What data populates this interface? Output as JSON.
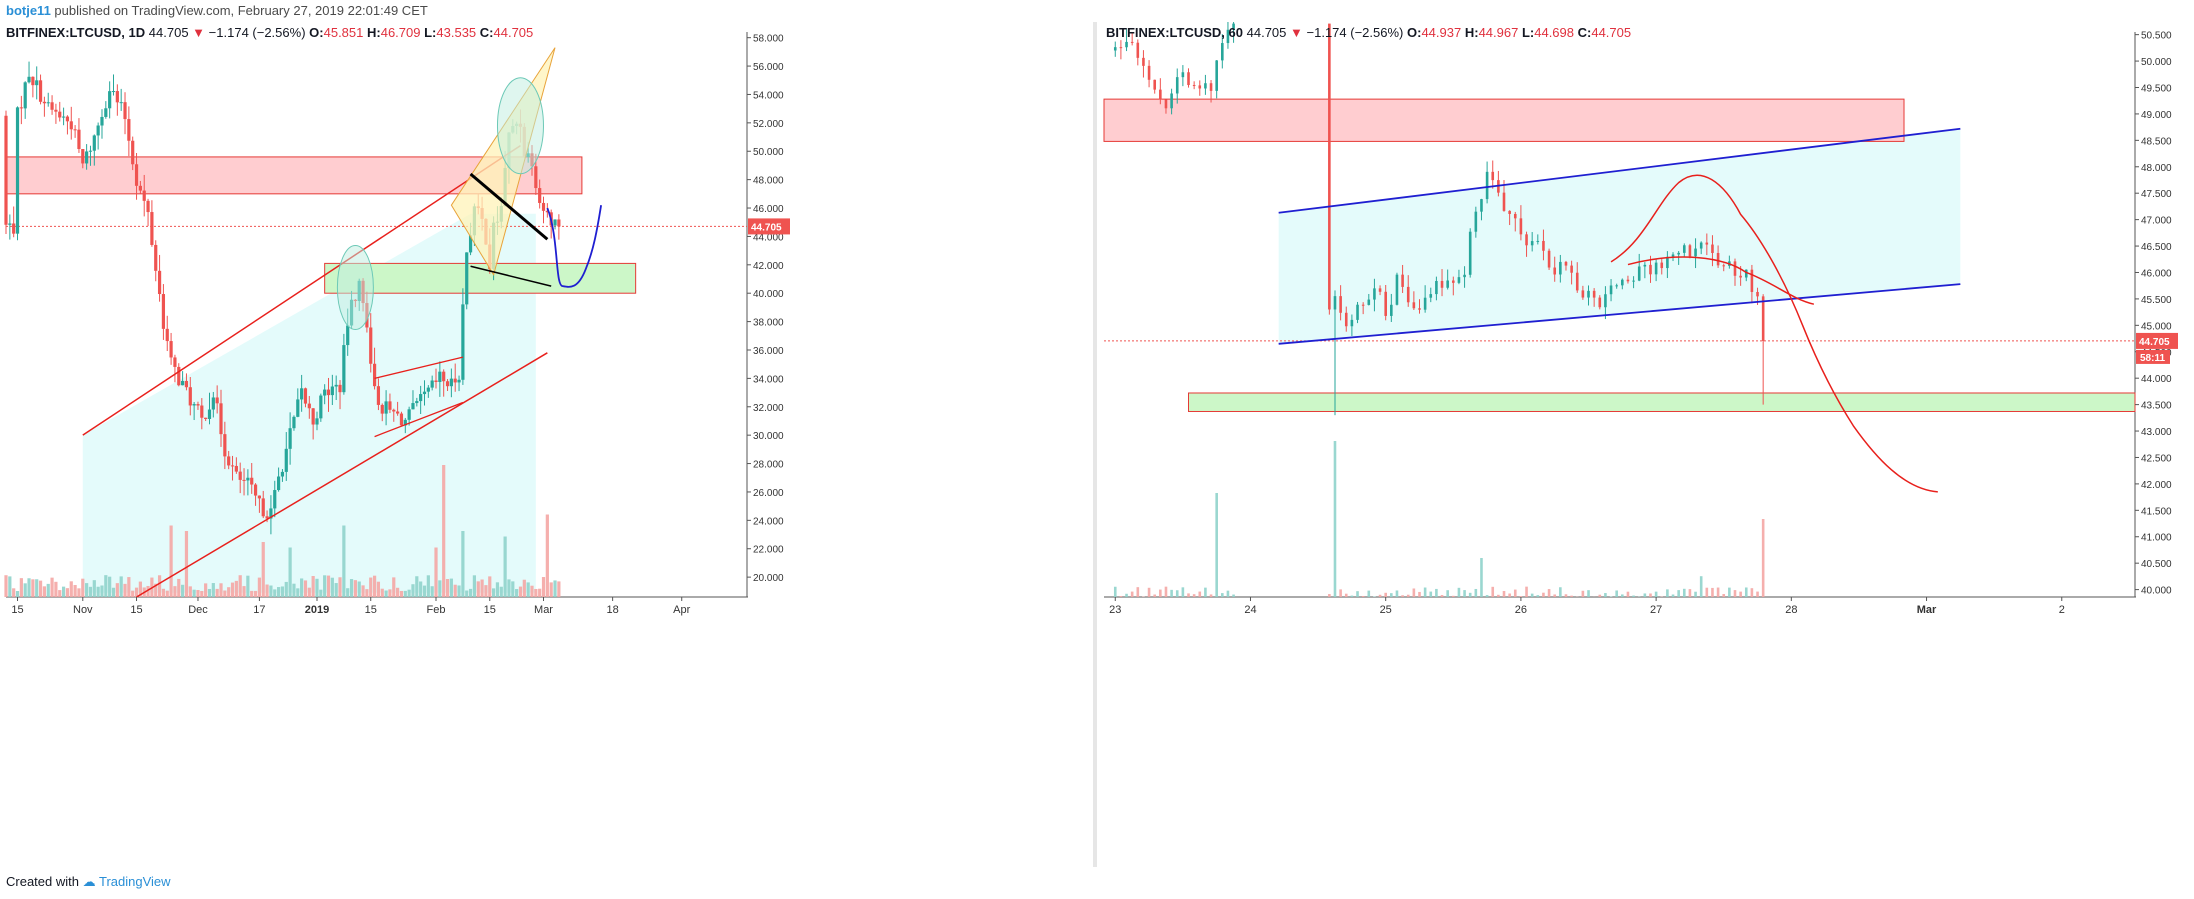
{
  "header": {
    "username": "botje11",
    "published_text": "published on TradingView.com, February 27, 2019 22:01:49 CET"
  },
  "left_panel": {
    "symbol": "BITFINEX:LTCUSD, 1D",
    "price": "44.705",
    "change_arrow": "▼",
    "change": "−1.174 (−2.56%)",
    "open_label": "O:",
    "open": "45.851",
    "high_label": "H:",
    "high": "46.709",
    "low_label": "L:",
    "low": "43.535",
    "close_label": "C:",
    "close": "44.705",
    "price_tag": "44.705"
  },
  "right_panel": {
    "symbol": "BITFINEX:LTCUSD, 60",
    "price": "44.705",
    "change_arrow": "▼",
    "change": "−1.174 (−2.56%)",
    "open_label": "O:",
    "open": "44.937",
    "high_label": "H:",
    "high": "44.967",
    "low_label": "L:",
    "low": "44.698",
    "close_label": "C:",
    "close": "44.705",
    "price_tag": "44.705",
    "countdown": "58:11"
  },
  "footer": {
    "created_with": "Created with",
    "brand": "TradingView"
  },
  "colors": {
    "bull": "#26a69a",
    "bear": "#ef5350",
    "trend_red": "#e8201c",
    "projection_blue": "#1f1fd1",
    "channel_fill": "#e4fbfb",
    "resistance_fill": "#ffcdd0",
    "support_fill": "#ccf7c8",
    "price_tag_bg": "#ef5350"
  },
  "chart_data": [
    {
      "type": "candlestick",
      "title": "BITFINEX:LTCUSD, 1D",
      "timeframe": "1D",
      "y_tick_labels": [
        "58.000",
        "56.000",
        "54.000",
        "52.000",
        "50.000",
        "48.000",
        "46.000",
        "44.000",
        "42.000",
        "40.000",
        "38.000",
        "36.000",
        "34.000",
        "32.000",
        "30.000",
        "28.000",
        "26.000",
        "24.000",
        "22.000",
        "20.000"
      ],
      "ylim": [
        18.6,
        58.4
      ],
      "x_tick_labels": [
        "15",
        "Nov",
        "15",
        "Dec",
        "17",
        "2019",
        "15",
        "Feb",
        "15",
        "Mar",
        "18",
        "Apr"
      ],
      "x_tick_days": [
        0,
        17,
        31,
        47,
        63,
        78,
        92,
        109,
        123,
        137,
        155,
        173
      ],
      "x_range_days": [
        -3,
        190
      ],
      "anchor": {
        "days": [
          -3,
          141
        ],
        "closes": [
          52,
          44.705
        ]
      },
      "waypoints": [
        [
          0,
          52.5
        ],
        [
          3,
          55.6
        ],
        [
          8,
          53
        ],
        [
          14,
          52
        ],
        [
          17,
          49
        ],
        [
          20,
          51
        ],
        [
          24,
          54.5
        ],
        [
          28,
          52.4
        ],
        [
          31,
          48
        ],
        [
          34,
          45.5
        ],
        [
          38,
          38
        ],
        [
          40,
          35
        ],
        [
          44,
          33
        ],
        [
          48,
          31
        ],
        [
          51,
          33
        ],
        [
          54,
          29
        ],
        [
          57,
          27
        ],
        [
          60,
          26.5
        ],
        [
          63,
          25
        ],
        [
          66,
          24.5
        ],
        [
          68,
          27
        ],
        [
          71,
          30
        ],
        [
          74,
          33
        ],
        [
          77,
          31
        ],
        [
          80,
          33
        ],
        [
          84,
          33.5
        ],
        [
          86,
          38
        ],
        [
          88,
          40
        ],
        [
          89,
          40.5
        ],
        [
          91,
          38
        ],
        [
          93,
          33
        ],
        [
          95,
          32
        ],
        [
          98,
          31.5
        ],
        [
          101,
          31
        ],
        [
          104,
          32
        ],
        [
          107,
          33
        ],
        [
          110,
          34
        ],
        [
          113,
          33.5
        ],
        [
          115,
          34.5
        ],
        [
          116,
          39
        ],
        [
          117,
          43
        ],
        [
          119,
          46
        ],
        [
          121,
          45
        ],
        [
          122,
          44
        ],
        [
          123,
          42
        ],
        [
          124,
          44.5
        ],
        [
          126,
          46
        ],
        [
          127,
          49
        ],
        [
          128,
          51
        ],
        [
          129,
          51.5
        ],
        [
          130,
          52
        ],
        [
          131,
          52
        ],
        [
          132,
          50
        ],
        [
          134,
          49.5
        ],
        [
          136,
          46.5
        ],
        [
          138,
          45.5
        ],
        [
          141,
          44.705
        ]
      ],
      "volume_spikes": [
        [
          116,
          12
        ],
        [
          111,
          24
        ],
        [
          109,
          9
        ],
        [
          127,
          11
        ],
        [
          138,
          15
        ],
        [
          85,
          13
        ],
        [
          64,
          10
        ],
        [
          40,
          13
        ],
        [
          44,
          12
        ],
        [
          71,
          9
        ]
      ],
      "current_price": 44.705,
      "zones": [
        {
          "kind": "resistance",
          "y": [
            47.0,
            49.6
          ],
          "x_days": [
            -3,
            147
          ]
        },
        {
          "kind": "support",
          "y": [
            40.0,
            42.1
          ],
          "x_days": [
            80,
            161
          ]
        }
      ],
      "channel_fill": {
        "from_x": 17,
        "to_x": 135
      },
      "trendlines": [
        {
          "color": "red",
          "points": [
            [
              17,
              30
            ]
          ],
          "note": "channel lower"
        }
      ],
      "overlays": "Ascending red channel, pink resistance zone, green support zone, yellow rising wedge with black lines, green ellipses on tops, blue projected path"
    },
    {
      "type": "candlestick",
      "title": "BITFINEX:LTCUSD, 60",
      "timeframe": "60",
      "y_tick_labels": [
        "50.500",
        "50.000",
        "49.500",
        "49.000",
        "48.500",
        "48.000",
        "47.500",
        "47.000",
        "46.500",
        "46.000",
        "45.500",
        "45.000",
        "44.500",
        "44.000",
        "43.500",
        "43.000",
        "42.500",
        "42.000",
        "41.500",
        "41.000",
        "40.500",
        "40.000"
      ],
      "ylim": [
        39.86,
        50.55
      ],
      "x_tick_labels": [
        "23",
        "24",
        "25",
        "26",
        "27",
        "28",
        "Mar",
        "2"
      ],
      "x_tick_hours": [
        0,
        24,
        48,
        72,
        96,
        120,
        144,
        168
      ],
      "x_range_hours": [
        -2,
        181
      ],
      "anchor": {
        "hours": [
          0,
          115
        ],
        "closes": [
          50.1,
          44.705
        ]
      },
      "waypoints": [
        [
          0,
          50.2
        ],
        [
          2,
          50.5
        ],
        [
          6,
          49.7
        ],
        [
          9,
          49.2
        ],
        [
          11,
          49.8
        ],
        [
          14,
          49.6
        ],
        [
          17,
          49.4
        ],
        [
          19,
          50.4
        ],
        [
          21,
          50.8
        ],
        [
          30,
          50.8
        ],
        [
          38,
          50.8
        ],
        [
          38.5,
          47.5
        ],
        [
          39,
          45.6
        ],
        [
          41,
          45
        ],
        [
          44,
          45.5
        ],
        [
          46,
          45.7
        ],
        [
          48,
          45.3
        ],
        [
          50,
          45.8
        ],
        [
          53,
          45.2
        ],
        [
          56,
          45.7
        ],
        [
          59,
          45.8
        ],
        [
          62,
          46
        ],
        [
          64,
          47.2
        ],
        [
          66,
          47.8
        ],
        [
          68,
          47.6
        ],
        [
          70,
          47
        ],
        [
          72,
          46.7
        ],
        [
          75,
          46.5
        ],
        [
          77,
          46.2
        ],
        [
          80,
          46
        ],
        [
          83,
          45.7
        ],
        [
          86,
          45.5
        ],
        [
          88,
          45.7
        ],
        [
          91,
          45.9
        ],
        [
          95,
          46.1
        ],
        [
          100,
          46.3
        ],
        [
          104,
          46.5
        ],
        [
          108,
          46.1
        ],
        [
          112,
          45.9
        ],
        [
          114,
          45.5
        ],
        [
          115,
          44.705
        ]
      ],
      "volume_spikes": [
        [
          39,
          12
        ],
        [
          18,
          8
        ],
        [
          115,
          6
        ],
        [
          65,
          3
        ],
        [
          104,
          1.6
        ]
      ],
      "current_price": 44.705,
      "zones": [
        {
          "kind": "resistance",
          "y": [
            48.48,
            49.28
          ],
          "x_days": [
            -2,
            140
          ]
        },
        {
          "kind": "support",
          "y": [
            43.37,
            43.72
          ],
          "x_days": [
            13,
            181
          ]
        }
      ],
      "overlays": "Ascending blue channel, red projected path going down toward 41.8"
    }
  ]
}
